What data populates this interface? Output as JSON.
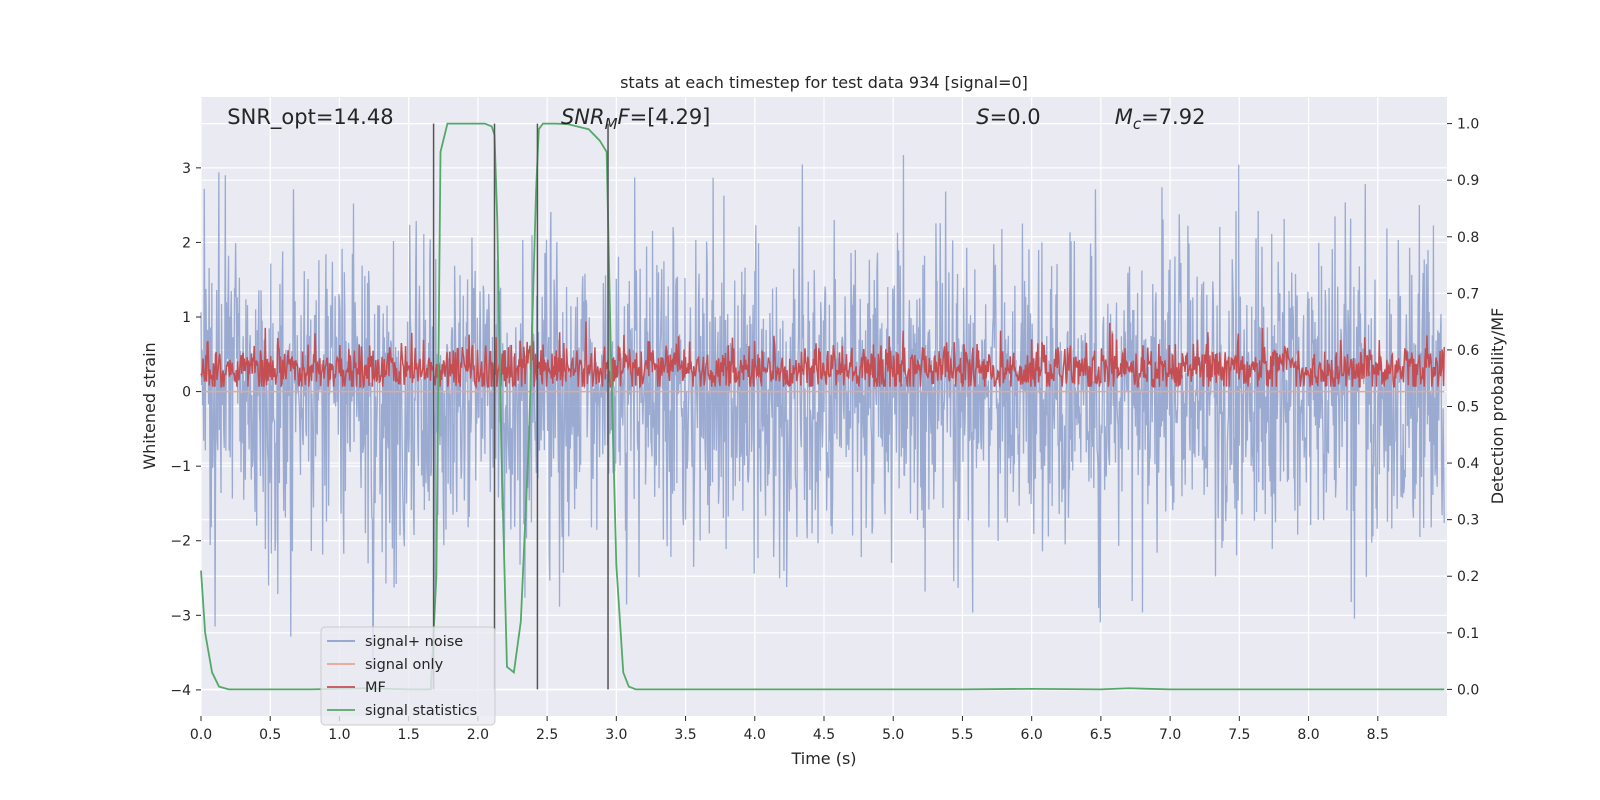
{
  "chart_data": {
    "type": "line",
    "title": "stats at each timestep for test data 934 [signal=0]",
    "xlabel": "Time (s)",
    "ylabel": "Whitened strain",
    "ylabel_right": "Detection probability/MF",
    "xlim": [
      0,
      9
    ],
    "ylim": [
      -4.35,
      3.95
    ],
    "ylim_right": [
      -0.047,
      1.047
    ],
    "x_ticks": [
      "0.0",
      "0.5",
      "1.0",
      "1.5",
      "2.0",
      "2.5",
      "3.0",
      "3.5",
      "4.0",
      "4.5",
      "5.0",
      "5.5",
      "6.0",
      "6.5",
      "7.0",
      "7.5",
      "8.0",
      "8.5"
    ],
    "x_tick_values": [
      0,
      0.5,
      1.0,
      1.5,
      2.0,
      2.5,
      3.0,
      3.5,
      4.0,
      4.5,
      5.0,
      5.5,
      6.0,
      6.5,
      7.0,
      7.5,
      8.0,
      8.5
    ],
    "y_ticks": [
      "3",
      "2",
      "1",
      "0",
      "−1",
      "−2",
      "−3",
      "−4"
    ],
    "y_tick_values": [
      3,
      2,
      1,
      0,
      -1,
      -2,
      -3,
      -4
    ],
    "y_right_ticks": [
      "1.0",
      "0.9",
      "0.8",
      "0.7",
      "0.6",
      "0.5",
      "0.4",
      "0.3",
      "0.2",
      "0.1",
      "0.0"
    ],
    "y_right_tick_values": [
      1.0,
      0.9,
      0.8,
      0.7,
      0.6,
      0.5,
      0.4,
      0.3,
      0.2,
      0.1,
      0.0
    ],
    "grid": true,
    "legend_placement": "lower-left",
    "annotations": [
      {
        "label": "snr-opt",
        "text": "SNR_opt=14.48",
        "x": 0.19
      },
      {
        "label": "snr-mf",
        "text": "SNR_MF=[4.29]",
        "x": 2.6
      },
      {
        "label": "s-value",
        "text": "S=0.0",
        "x": 5.6
      },
      {
        "label": "chirp-mass",
        "text": "M_c=7.92",
        "x": 6.6
      }
    ],
    "detection_lines_x": [
      1.68,
      2.12,
      2.43,
      2.94
    ],
    "series": [
      {
        "name": "signal+ noise",
        "axis": "left",
        "color": "#8c9fcb",
        "opacity": 0.85,
        "stochastic": {
          "kind": "noise",
          "n": 2300,
          "sigma": 1.05,
          "seed": 934
        },
        "envelope": {
          "upper_typical": 2.0,
          "lower_typical": -1.7,
          "max": 3.55,
          "min": -4.0
        }
      },
      {
        "name": "signal only",
        "axis": "left",
        "color": "#e8a78f",
        "values_constant": 0.0
      },
      {
        "name": "MF",
        "axis": "right",
        "color": "#c44e52",
        "stochastic": {
          "kind": "noise",
          "n": 1800,
          "mean": 0.565,
          "sigma": 0.022,
          "seed": 71
        },
        "range": [
          0.535,
          0.65
        ]
      },
      {
        "name": "signal statistics",
        "axis": "right",
        "color": "#55a868",
        "x": [
          0.0,
          0.03,
          0.08,
          0.13,
          0.2,
          0.4,
          0.8,
          1.2,
          1.5,
          1.66,
          1.7,
          1.73,
          1.78,
          1.85,
          1.95,
          2.05,
          2.1,
          2.12,
          2.14,
          2.17,
          2.21,
          2.26,
          2.31,
          2.37,
          2.42,
          2.44,
          2.47,
          2.5,
          2.56,
          2.65,
          2.8,
          2.88,
          2.93,
          2.96,
          3.0,
          3.05,
          3.09,
          3.14,
          3.25,
          3.6,
          4.5,
          5.5,
          6.0,
          6.5,
          6.7,
          7.0,
          8.0,
          8.98
        ],
        "y": [
          0.21,
          0.1,
          0.03,
          0.005,
          0.0,
          0.0,
          0.0,
          0.002,
          0.0,
          0.0,
          0.2,
          0.95,
          1.0,
          1.0,
          1.0,
          1.0,
          0.995,
          0.98,
          0.83,
          0.42,
          0.04,
          0.03,
          0.12,
          0.45,
          0.88,
          0.99,
          1.0,
          1.0,
          1.0,
          0.999,
          0.99,
          0.97,
          0.95,
          0.6,
          0.22,
          0.03,
          0.005,
          0.0,
          0.0,
          0.0,
          0.0,
          0.0,
          0.001,
          0.0,
          0.002,
          0.0,
          0.0,
          0.0
        ]
      }
    ]
  },
  "legend": {
    "items": [
      {
        "label": "signal+ noise",
        "color": "#8c9fcb"
      },
      {
        "label": "signal only",
        "color": "#e8a78f"
      },
      {
        "label": "MF",
        "color": "#c44e52"
      },
      {
        "label": "signal statistics",
        "color": "#55a868"
      }
    ]
  }
}
